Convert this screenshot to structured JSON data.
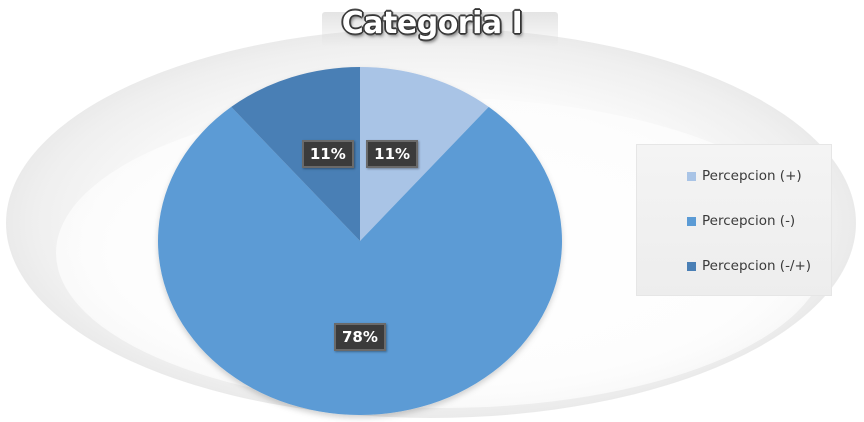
{
  "chart_data": {
    "type": "pie",
    "title": "Categoria I",
    "categories": [
      "Percepcion (+)",
      "Percepcion (-)",
      "Percepcion (-/+)"
    ],
    "values": [
      11,
      78,
      11
    ],
    "data_labels": [
      "11%",
      "78%",
      "11%"
    ],
    "colors": [
      "#a9c4e6",
      "#5b9bd5",
      "#4a7fb5"
    ],
    "legend": {
      "position": "right",
      "entries": [
        "Percepcion (+)",
        "Percepcion (-)",
        "Percepcion (-/+)"
      ]
    },
    "start_angle_deg": 0,
    "direction": "clockwise"
  }
}
